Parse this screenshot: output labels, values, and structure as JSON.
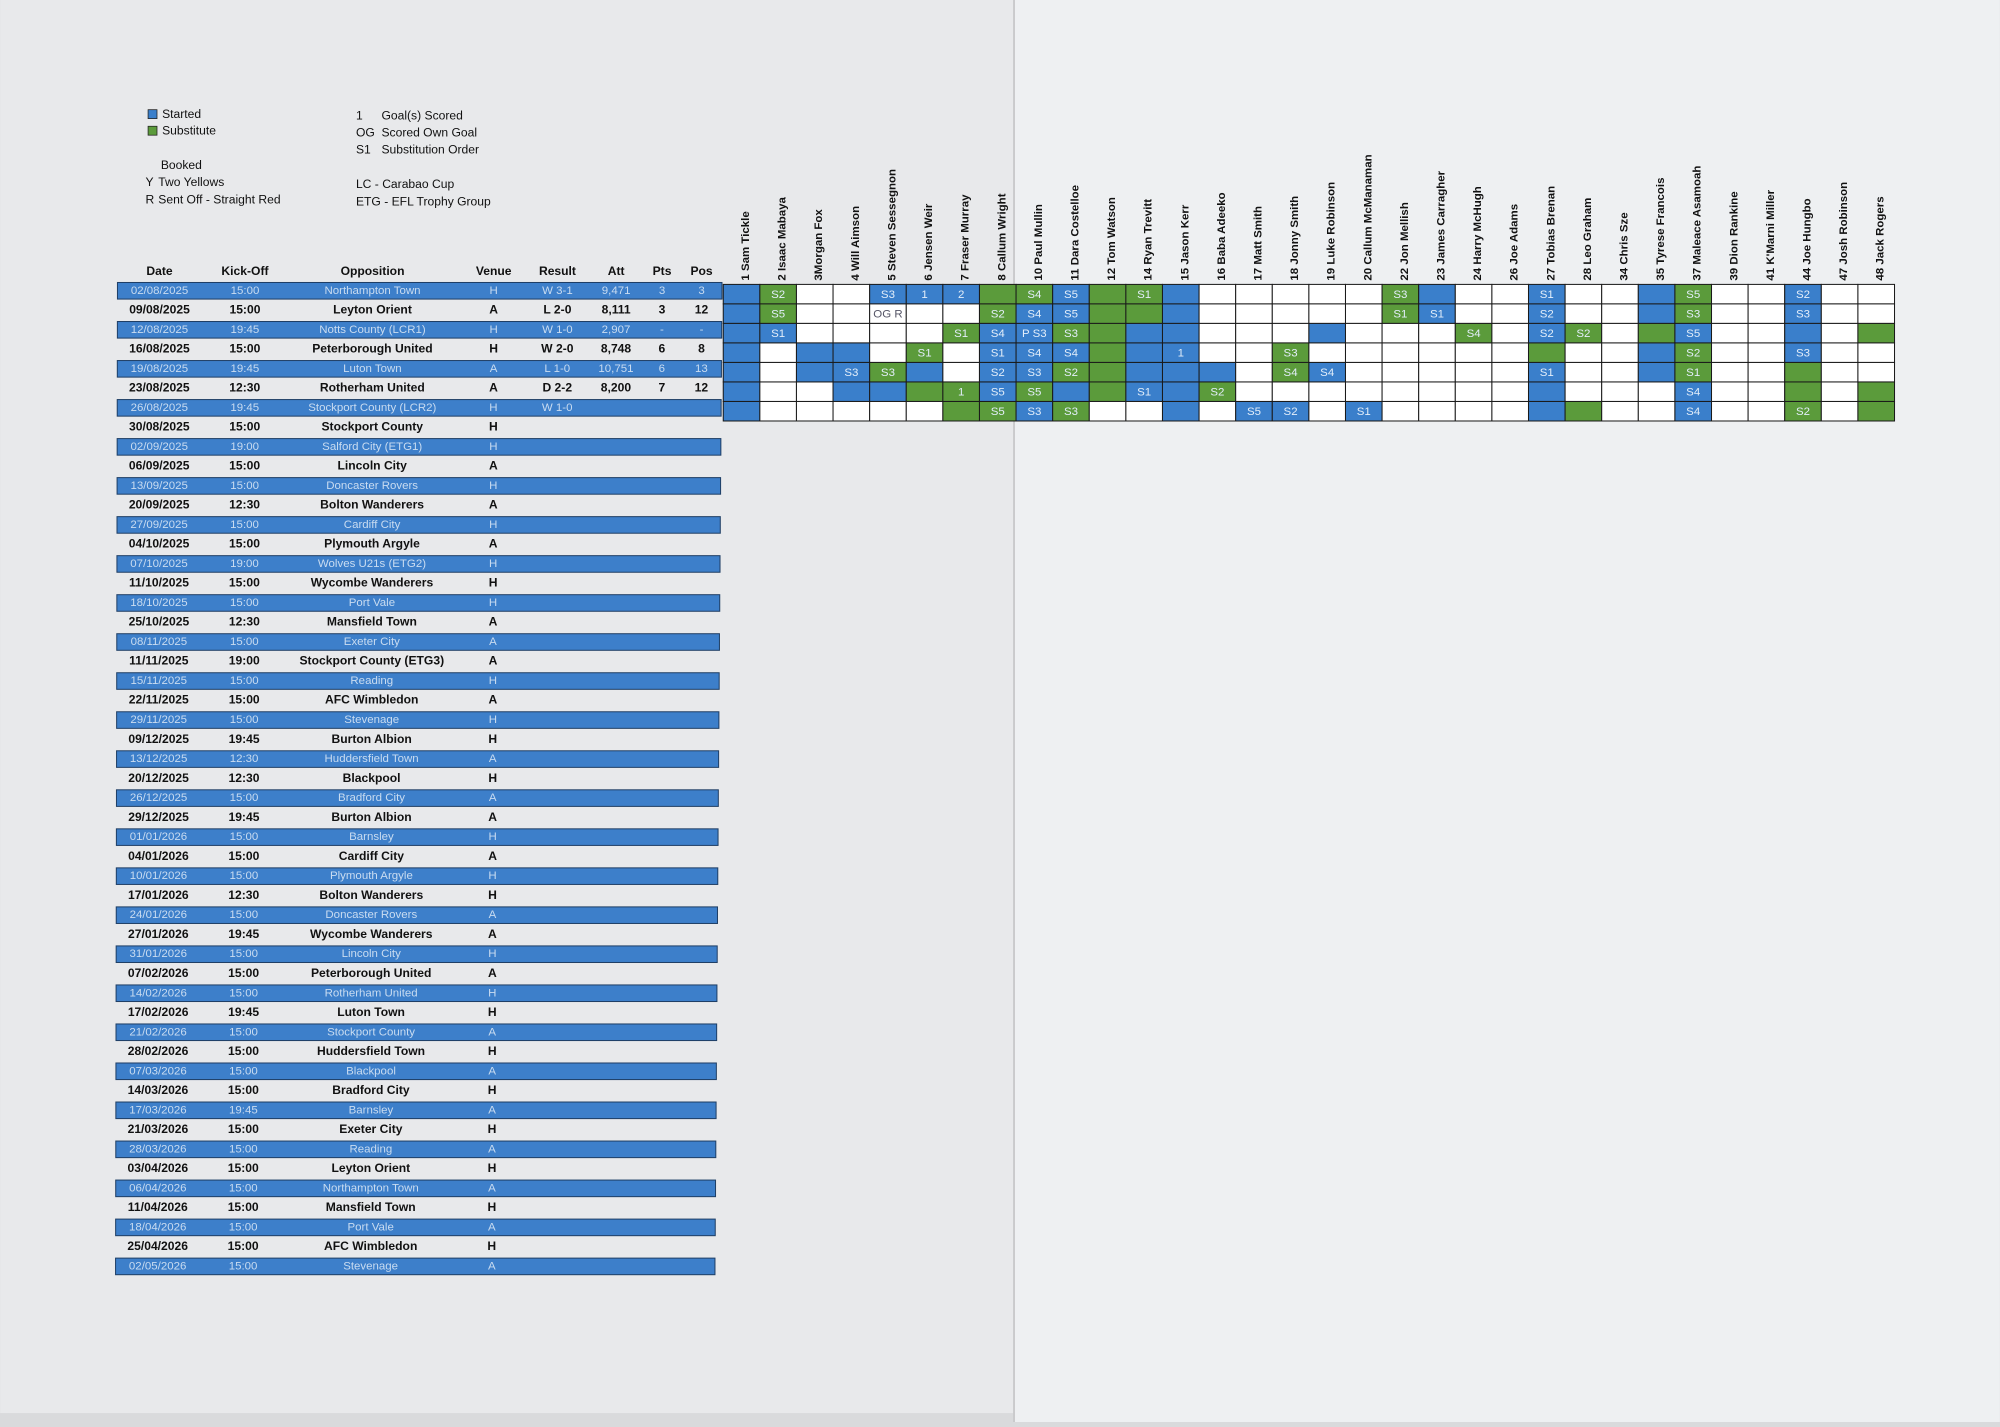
{
  "legend": {
    "boxes": [
      {
        "text": "Started",
        "color": "#3a7fcb"
      },
      {
        "text": "Substitute",
        "color": "#5b9b3b"
      }
    ],
    "cards": [
      {
        "text": "Booked"
      },
      {
        "mark": "Y",
        "text": "Two Yellows"
      },
      {
        "mark": "R",
        "text": "Sent Off - Straight Red"
      }
    ],
    "codes": [
      {
        "mark": "1",
        "text": "Goal(s) Scored"
      },
      {
        "mark": "OG",
        "text": "Scored Own Goal"
      },
      {
        "mark": "S1",
        "text": "Substitution Order"
      }
    ],
    "competitions": [
      "LC - Carabao Cup",
      "ETG - EFL Trophy Group"
    ]
  },
  "table": {
    "header": [
      "Date",
      "Kick-Off",
      "Opposition",
      "Venue",
      "Result",
      "Att",
      "Pts",
      "Pos"
    ],
    "rows": [
      [
        "02/08/2025",
        "15:00",
        "Northampton Town",
        "H",
        "W 3-1",
        "9,471",
        "3",
        "3"
      ],
      [
        "09/08/2025",
        "15:00",
        "Leyton Orient",
        "A",
        "L 2-0",
        "8,111",
        "3",
        "12"
      ],
      [
        "12/08/2025",
        "19:45",
        "Notts County (LCR1)",
        "H",
        "W 1-0",
        "2,907",
        "-",
        "-"
      ],
      [
        "16/08/2025",
        "15:00",
        "Peterborough United",
        "H",
        "W 2-0",
        "8,748",
        "6",
        "8"
      ],
      [
        "19/08/2025",
        "19:45",
        "Luton Town",
        "A",
        "L 1-0",
        "10,751",
        "6",
        "13"
      ],
      [
        "23/08/2025",
        "12:30",
        "Rotherham United",
        "A",
        "D 2-2",
        "8,200",
        "7",
        "12"
      ],
      [
        "26/08/2025",
        "19:45",
        "Stockport County (LCR2)",
        "H",
        "W 1-0"
      ],
      [
        "30/08/2025",
        "15:00",
        "Stockport County",
        "H"
      ],
      [
        "02/09/2025",
        "19:00",
        "Salford City (ETG1)",
        "H"
      ],
      [
        "06/09/2025",
        "15:00",
        "Lincoln City",
        "A"
      ],
      [
        "13/09/2025",
        "15:00",
        "Doncaster Rovers",
        "H"
      ],
      [
        "20/09/2025",
        "12:30",
        "Bolton Wanderers",
        "A"
      ],
      [
        "27/09/2025",
        "15:00",
        "Cardiff City",
        "H"
      ],
      [
        "04/10/2025",
        "15:00",
        "Plymouth Argyle",
        "A"
      ],
      [
        "07/10/2025",
        "19:00",
        "Wolves U21s (ETG2)",
        "H"
      ],
      [
        "11/10/2025",
        "15:00",
        "Wycombe Wanderers",
        "H"
      ],
      [
        "18/10/2025",
        "15:00",
        "Port Vale",
        "H"
      ],
      [
        "25/10/2025",
        "12:30",
        "Mansfield Town",
        "A"
      ],
      [
        "08/11/2025",
        "15:00",
        "Exeter City",
        "A"
      ],
      [
        "11/11/2025",
        "19:00",
        "Stockport County (ETG3)",
        "A"
      ],
      [
        "15/11/2025",
        "15:00",
        "Reading",
        "H"
      ],
      [
        "22/11/2025",
        "15:00",
        "AFC Wimbledon",
        "A"
      ],
      [
        "29/11/2025",
        "15:00",
        "Stevenage",
        "H"
      ],
      [
        "09/12/2025",
        "19:45",
        "Burton Albion",
        "H"
      ],
      [
        "13/12/2025",
        "12:30",
        "Huddersfield Town",
        "A"
      ],
      [
        "20/12/2025",
        "12:30",
        "Blackpool",
        "H"
      ],
      [
        "26/12/2025",
        "15:00",
        "Bradford City",
        "A"
      ],
      [
        "29/12/2025",
        "19:45",
        "Burton Albion",
        "A"
      ],
      [
        "01/01/2026",
        "15:00",
        "Barnsley",
        "H"
      ],
      [
        "04/01/2026",
        "15:00",
        "Cardiff City",
        "A"
      ],
      [
        "10/01/2026",
        "15:00",
        "Plymouth Argyle",
        "H"
      ],
      [
        "17/01/2026",
        "12:30",
        "Bolton Wanderers",
        "H"
      ],
      [
        "24/01/2026",
        "15:00",
        "Doncaster Rovers",
        "A"
      ],
      [
        "27/01/2026",
        "19:45",
        "Wycombe Wanderers",
        "A"
      ],
      [
        "31/01/2026",
        "15:00",
        "Lincoln City",
        "H"
      ],
      [
        "07/02/2026",
        "15:00",
        "Peterborough United",
        "A"
      ],
      [
        "14/02/2026",
        "15:00",
        "Rotherham United",
        "H"
      ],
      [
        "17/02/2026",
        "19:45",
        "Luton Town",
        "H"
      ],
      [
        "21/02/2026",
        "15:00",
        "Stockport County",
        "A"
      ],
      [
        "28/02/2026",
        "15:00",
        "Huddersfield Town",
        "H"
      ],
      [
        "07/03/2026",
        "15:00",
        "Blackpool",
        "A"
      ],
      [
        "14/03/2026",
        "15:00",
        "Bradford City",
        "H"
      ],
      [
        "17/03/2026",
        "19:45",
        "Barnsley",
        "A"
      ],
      [
        "21/03/2026",
        "15:00",
        "Exeter City",
        "H"
      ],
      [
        "28/03/2026",
        "15:00",
        "Reading",
        "A"
      ],
      [
        "03/04/2026",
        "15:00",
        "Leyton Orient",
        "H"
      ],
      [
        "06/04/2026",
        "15:00",
        "Northampton Town",
        "A"
      ],
      [
        "11/04/2026",
        "15:00",
        "Mansfield Town",
        "H"
      ],
      [
        "18/04/2026",
        "15:00",
        "Port Vale",
        "A"
      ],
      [
        "25/04/2026",
        "15:00",
        "AFC Wimbledon",
        "H"
      ],
      [
        "02/05/2026",
        "15:00",
        "Stevenage",
        "A"
      ]
    ]
  },
  "grid": {
    "colors": {
      "blue": "#3a7fcb",
      "green": "#5b9b3b",
      "white": "#ffffff"
    },
    "players": [
      "1 Sam Tickle",
      "2 Isaac Mabaya",
      "3Morgan Fox",
      "4 Will Aimson",
      "5 Steven Sessegnon",
      "6 Jensen Weir",
      "7 Fraser Murray",
      "8 Callum Wright",
      "10 Paul Mullin",
      "11 Dara Costelloe",
      "12 Tom Watson",
      "14 Ryan Trevitt",
      "15 Jason Kerr",
      "16 Baba Adeeko",
      "17 Matt Smith",
      "18 Jonny Smith",
      "19 Luke Robinson",
      "20 Callum McManaman",
      "22 Jon Mellish",
      "23 James Carragher",
      "24 Harry McHugh",
      "26 Joe Adams",
      "27 Tobias Brenan",
      "28 Leo Graham",
      "34 Chris Sze",
      "35 Tyrese Francois",
      "37 Maleace Asamoah",
      "39 Dion Rankine",
      "41 K'Marni Miller",
      "44 Joe Hungbo",
      "47 Josh Robinson",
      "48 Jack Rogers"
    ],
    "rows": [
      [
        "blue",
        {
          "fill": "green",
          "text": "S2"
        },
        "white",
        "white",
        {
          "fill": "blue",
          "text": "S3"
        },
        {
          "fill": "blue",
          "text": "1"
        },
        {
          "fill": "blue",
          "text": "2"
        },
        "green",
        {
          "fill": "green",
          "text": "S4"
        },
        {
          "fill": "blue",
          "text": "S5"
        },
        "green",
        {
          "fill": "green",
          "text": "S1"
        },
        "blue",
        "white",
        "white",
        "white",
        "white",
        "white",
        {
          "fill": "green",
          "text": "S3"
        },
        "blue",
        "white",
        "white",
        {
          "fill": "blue",
          "text": "S1"
        },
        "white",
        "white",
        "blue",
        {
          "fill": "green",
          "text": "S5"
        },
        "white",
        "white",
        {
          "fill": "blue",
          "text": "S2"
        },
        "white",
        "white"
      ],
      [
        "blue",
        {
          "fill": "green",
          "text": "S5"
        },
        "white",
        "white",
        {
          "fill": "white",
          "text": "OG R"
        },
        "white",
        "white",
        {
          "fill": "green",
          "text": "S2"
        },
        {
          "fill": "blue",
          "text": "S4"
        },
        {
          "fill": "blue",
          "text": "S5"
        },
        "green",
        "green",
        "blue",
        "white",
        "white",
        "white",
        "white",
        "white",
        {
          "fill": "green",
          "text": "S1"
        },
        {
          "fill": "blue",
          "text": "S1"
        },
        "white",
        "white",
        {
          "fill": "blue",
          "text": "S2"
        },
        "white",
        "white",
        "blue",
        {
          "fill": "green",
          "text": "S3"
        },
        "white",
        "white",
        {
          "fill": "blue",
          "text": "S3"
        },
        "white",
        "white"
      ],
      [
        "blue",
        {
          "fill": "blue",
          "text": "S1"
        },
        "white",
        "white",
        "white",
        "white",
        {
          "fill": "green",
          "text": "S1"
        },
        {
          "fill": "blue",
          "text": "S4"
        },
        {
          "fill": "blue",
          "text": "P S3"
        },
        {
          "fill": "green",
          "text": "S3"
        },
        "green",
        "blue",
        "blue",
        "white",
        "white",
        "white",
        "blue",
        "white",
        "white",
        "white",
        {
          "fill": "green",
          "text": "S4"
        },
        "white",
        {
          "fill": "blue",
          "text": "S2"
        },
        {
          "fill": "green",
          "text": "S2"
        },
        "white",
        "green",
        {
          "fill": "blue",
          "text": "S5"
        },
        "white",
        "white",
        "blue",
        "white",
        "green"
      ],
      [
        "blue",
        "white",
        "blue",
        "blue",
        "white",
        {
          "fill": "green",
          "text": "S1"
        },
        "white",
        {
          "fill": "blue",
          "text": "S1"
        },
        {
          "fill": "blue",
          "text": "S4"
        },
        {
          "fill": "blue",
          "text": "S4"
        },
        "green",
        "blue",
        {
          "fill": "blue",
          "text": "1"
        },
        "white",
        "white",
        {
          "fill": "green",
          "text": "S3"
        },
        "white",
        "white",
        "white",
        "white",
        "white",
        "white",
        "green",
        "white",
        "white",
        "blue",
        {
          "fill": "green",
          "text": "S2"
        },
        "white",
        "white",
        {
          "fill": "blue",
          "text": "S3"
        },
        "white",
        "white"
      ],
      [
        "blue",
        "white",
        "blue",
        {
          "fill": "blue",
          "text": "S3"
        },
        {
          "fill": "green",
          "text": "S3"
        },
        "blue",
        "white",
        {
          "fill": "blue",
          "text": "S2"
        },
        {
          "fill": "blue",
          "text": "S3"
        },
        {
          "fill": "green",
          "text": "S2"
        },
        "green",
        "blue",
        "blue",
        "blue",
        "white",
        {
          "fill": "green",
          "text": "S4"
        },
        {
          "fill": "blue",
          "text": "S4"
        },
        "white",
        "white",
        "white",
        "white",
        "white",
        {
          "fill": "blue",
          "text": "S1"
        },
        "white",
        "white",
        "blue",
        {
          "fill": "green",
          "text": "S1"
        },
        "white",
        "white",
        "green",
        "white",
        "white"
      ],
      [
        "blue",
        "white",
        "white",
        "blue",
        "blue",
        "green",
        {
          "fill": "green",
          "text": "1"
        },
        {
          "fill": "blue",
          "text": "S5"
        },
        {
          "fill": "green",
          "text": "S5"
        },
        "blue",
        "green",
        {
          "fill": "blue",
          "text": "S1"
        },
        "blue",
        {
          "fill": "green",
          "text": "S2"
        },
        "white",
        "white",
        "white",
        "white",
        "white",
        "white",
        "white",
        "white",
        "blue",
        "white",
        "white",
        "white",
        {
          "fill": "blue",
          "text": "S4"
        },
        "white",
        "white",
        "green",
        "white",
        "green"
      ],
      [
        "blue",
        "white",
        "white",
        "white",
        "white",
        "white",
        "green",
        {
          "fill": "green",
          "text": "S5"
        },
        {
          "fill": "blue",
          "text": "S3"
        },
        {
          "fill": "green",
          "text": "S3"
        },
        "white",
        "white",
        "blue",
        "white",
        {
          "fill": "blue",
          "text": "S5"
        },
        {
          "fill": "blue",
          "text": "S2"
        },
        "white",
        {
          "fill": "blue",
          "text": "S1"
        },
        "white",
        "white",
        "white",
        "white",
        "blue",
        "green",
        "white",
        "white",
        {
          "fill": "blue",
          "text": "S4"
        },
        "white",
        "white",
        {
          "fill": "green",
          "text": "S2"
        },
        "white",
        "green"
      ]
    ]
  }
}
